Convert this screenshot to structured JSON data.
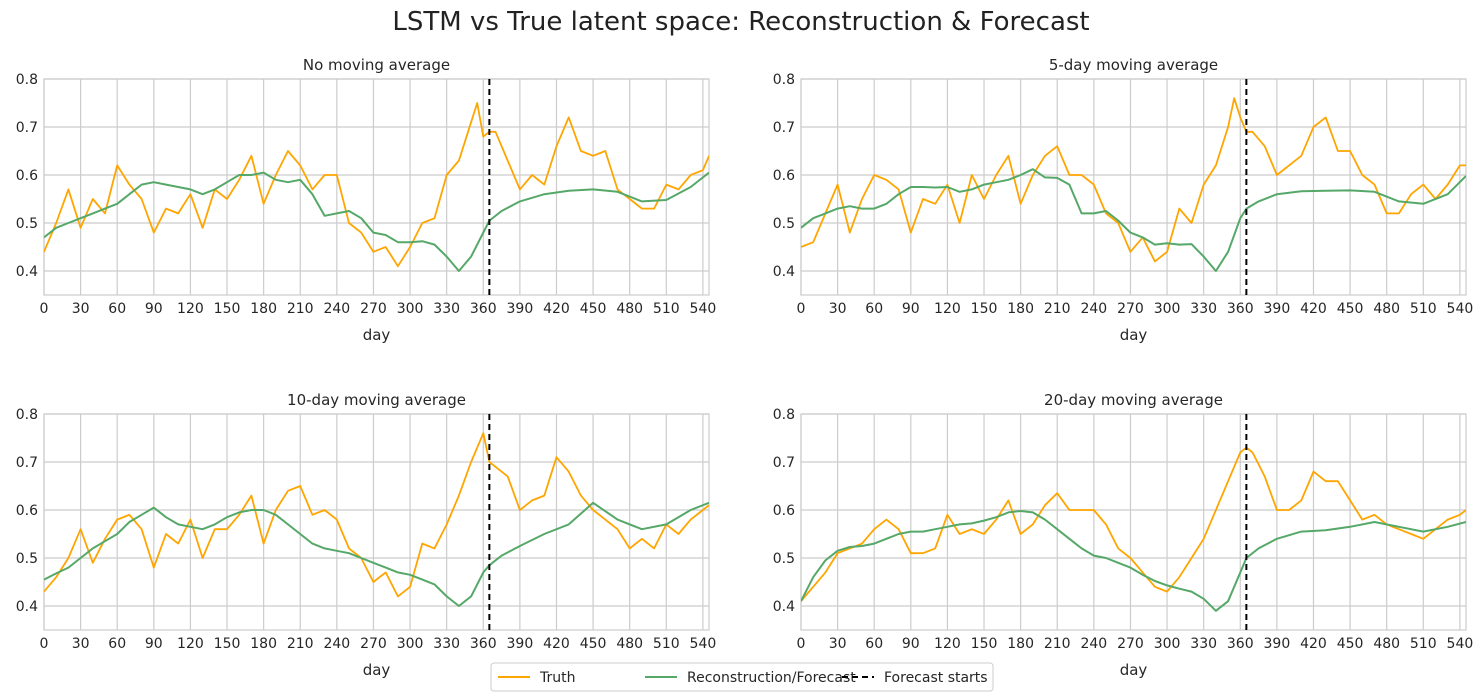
{
  "figure": {
    "title": "LSTM vs True latent space: Reconstruction & Forecast",
    "legend": [
      {
        "label": "Truth",
        "color": "#ffa500",
        "style": "solid"
      },
      {
        "label": "Reconstruction/Forecast",
        "color": "#55a868",
        "style": "solid"
      },
      {
        "label": "Forecast starts",
        "color": "#000000",
        "style": "dashed"
      }
    ],
    "legend_placement": "bottom-center"
  },
  "colors": {
    "truth": "#ffa500",
    "reconstruction": "#55a868",
    "forecast_line": "#000000",
    "grid": "#cccccc",
    "axis": "#cccccc"
  },
  "chart_data": [
    {
      "type": "line",
      "title": "No moving average",
      "xlabel": "day",
      "ylabel": "",
      "xlim": [
        0,
        545
      ],
      "ylim": [
        0.35,
        0.8
      ],
      "xticks": [
        0,
        30,
        60,
        90,
        120,
        150,
        180,
        210,
        240,
        270,
        300,
        330,
        360,
        390,
        420,
        450,
        480,
        510,
        540
      ],
      "yticks": [
        0.4,
        0.5,
        0.6,
        0.7,
        0.8
      ],
      "grid": true,
      "forecast_start": 365,
      "series": [
        {
          "name": "Truth",
          "x": [
            0,
            10,
            20,
            30,
            40,
            50,
            60,
            70,
            80,
            90,
            100,
            110,
            120,
            130,
            140,
            150,
            160,
            170,
            180,
            190,
            200,
            210,
            220,
            230,
            240,
            250,
            260,
            270,
            280,
            290,
            300,
            310,
            320,
            330,
            340,
            350,
            355,
            360,
            365,
            370,
            380,
            390,
            400,
            410,
            420,
            430,
            440,
            450,
            460,
            470,
            480,
            490,
            500,
            510,
            520,
            530,
            540,
            545
          ],
          "y": [
            0.44,
            0.5,
            0.57,
            0.49,
            0.55,
            0.52,
            0.62,
            0.58,
            0.55,
            0.48,
            0.53,
            0.52,
            0.56,
            0.49,
            0.57,
            0.55,
            0.59,
            0.64,
            0.54,
            0.6,
            0.65,
            0.62,
            0.57,
            0.6,
            0.6,
            0.5,
            0.48,
            0.44,
            0.45,
            0.41,
            0.45,
            0.5,
            0.51,
            0.6,
            0.63,
            0.71,
            0.75,
            0.68,
            0.69,
            0.69,
            0.63,
            0.57,
            0.6,
            0.58,
            0.66,
            0.72,
            0.65,
            0.64,
            0.65,
            0.57,
            0.55,
            0.53,
            0.53,
            0.58,
            0.57,
            0.6,
            0.61,
            0.64
          ]
        },
        {
          "name": "Reconstruction/Forecast",
          "x": [
            0,
            10,
            20,
            30,
            40,
            50,
            60,
            70,
            80,
            90,
            100,
            110,
            120,
            130,
            140,
            150,
            160,
            170,
            180,
            190,
            200,
            210,
            220,
            230,
            240,
            250,
            260,
            270,
            280,
            290,
            300,
            310,
            320,
            330,
            340,
            350,
            360,
            365,
            375,
            390,
            410,
            430,
            450,
            470,
            490,
            510,
            530,
            545
          ],
          "y": [
            0.47,
            0.49,
            0.5,
            0.51,
            0.52,
            0.53,
            0.54,
            0.56,
            0.58,
            0.585,
            0.58,
            0.575,
            0.57,
            0.56,
            0.57,
            0.585,
            0.6,
            0.6,
            0.605,
            0.59,
            0.585,
            0.59,
            0.56,
            0.515,
            0.52,
            0.525,
            0.51,
            0.48,
            0.475,
            0.46,
            0.46,
            0.462,
            0.455,
            0.43,
            0.4,
            0.43,
            0.48,
            0.505,
            0.525,
            0.545,
            0.56,
            0.567,
            0.57,
            0.565,
            0.545,
            0.548,
            0.575,
            0.605
          ]
        }
      ]
    },
    {
      "type": "line",
      "title": "5-day moving average",
      "xlabel": "day",
      "ylabel": "",
      "xlim": [
        0,
        545
      ],
      "ylim": [
        0.35,
        0.8
      ],
      "xticks": [
        0,
        30,
        60,
        90,
        120,
        150,
        180,
        210,
        240,
        270,
        300,
        330,
        360,
        390,
        420,
        450,
        480,
        510,
        540
      ],
      "yticks": [
        0.4,
        0.5,
        0.6,
        0.7,
        0.8
      ],
      "grid": true,
      "forecast_start": 365,
      "series": [
        {
          "name": "Truth",
          "x": [
            0,
            10,
            20,
            30,
            40,
            50,
            60,
            70,
            80,
            90,
            100,
            110,
            120,
            130,
            140,
            150,
            160,
            170,
            180,
            190,
            200,
            210,
            220,
            230,
            240,
            250,
            260,
            270,
            280,
            290,
            300,
            310,
            320,
            330,
            340,
            350,
            355,
            360,
            365,
            370,
            380,
            390,
            400,
            410,
            420,
            430,
            440,
            450,
            460,
            470,
            480,
            490,
            500,
            510,
            520,
            530,
            540,
            545
          ],
          "y": [
            0.45,
            0.46,
            0.52,
            0.58,
            0.48,
            0.55,
            0.6,
            0.59,
            0.57,
            0.48,
            0.55,
            0.54,
            0.58,
            0.5,
            0.6,
            0.55,
            0.6,
            0.64,
            0.54,
            0.6,
            0.64,
            0.66,
            0.6,
            0.6,
            0.58,
            0.52,
            0.5,
            0.44,
            0.47,
            0.42,
            0.44,
            0.53,
            0.5,
            0.58,
            0.62,
            0.7,
            0.76,
            0.72,
            0.69,
            0.69,
            0.66,
            0.6,
            0.62,
            0.64,
            0.7,
            0.72,
            0.65,
            0.65,
            0.6,
            0.58,
            0.52,
            0.52,
            0.56,
            0.58,
            0.55,
            0.58,
            0.62,
            0.62
          ]
        },
        {
          "name": "Reconstruction/Forecast",
          "x": [
            0,
            10,
            20,
            30,
            40,
            50,
            60,
            70,
            80,
            90,
            100,
            110,
            120,
            130,
            140,
            150,
            160,
            170,
            180,
            190,
            200,
            210,
            220,
            230,
            240,
            250,
            260,
            270,
            280,
            290,
            300,
            310,
            320,
            330,
            340,
            350,
            360,
            365,
            375,
            390,
            410,
            430,
            450,
            470,
            490,
            510,
            530,
            545
          ],
          "y": [
            0.49,
            0.51,
            0.52,
            0.53,
            0.535,
            0.53,
            0.53,
            0.54,
            0.56,
            0.575,
            0.575,
            0.574,
            0.575,
            0.565,
            0.57,
            0.58,
            0.585,
            0.59,
            0.6,
            0.612,
            0.595,
            0.594,
            0.58,
            0.52,
            0.52,
            0.525,
            0.505,
            0.48,
            0.47,
            0.455,
            0.458,
            0.455,
            0.456,
            0.43,
            0.4,
            0.44,
            0.51,
            0.53,
            0.545,
            0.56,
            0.566,
            0.567,
            0.568,
            0.565,
            0.545,
            0.54,
            0.56,
            0.598
          ]
        }
      ]
    },
    {
      "type": "line",
      "title": "10-day moving average",
      "xlabel": "day",
      "ylabel": "",
      "xlim": [
        0,
        545
      ],
      "ylim": [
        0.35,
        0.8
      ],
      "xticks": [
        0,
        30,
        60,
        90,
        120,
        150,
        180,
        210,
        240,
        270,
        300,
        330,
        360,
        390,
        420,
        450,
        480,
        510,
        540
      ],
      "yticks": [
        0.4,
        0.5,
        0.6,
        0.7,
        0.8
      ],
      "grid": true,
      "forecast_start": 365,
      "series": [
        {
          "name": "Truth",
          "x": [
            0,
            10,
            20,
            30,
            40,
            50,
            60,
            70,
            80,
            90,
            100,
            110,
            120,
            130,
            140,
            150,
            160,
            170,
            180,
            190,
            200,
            210,
            220,
            230,
            240,
            250,
            260,
            270,
            280,
            290,
            300,
            310,
            320,
            330,
            340,
            350,
            360,
            365,
            370,
            380,
            390,
            400,
            410,
            420,
            430,
            440,
            450,
            460,
            470,
            480,
            490,
            500,
            510,
            520,
            530,
            540,
            545
          ],
          "y": [
            0.43,
            0.46,
            0.5,
            0.56,
            0.49,
            0.54,
            0.58,
            0.59,
            0.56,
            0.48,
            0.55,
            0.53,
            0.58,
            0.5,
            0.56,
            0.56,
            0.59,
            0.63,
            0.53,
            0.6,
            0.64,
            0.65,
            0.59,
            0.6,
            0.58,
            0.52,
            0.5,
            0.45,
            0.47,
            0.42,
            0.44,
            0.53,
            0.52,
            0.57,
            0.63,
            0.7,
            0.76,
            0.7,
            0.69,
            0.67,
            0.6,
            0.62,
            0.63,
            0.71,
            0.68,
            0.63,
            0.6,
            0.58,
            0.56,
            0.52,
            0.54,
            0.52,
            0.57,
            0.55,
            0.58,
            0.6,
            0.61
          ]
        },
        {
          "name": "Reconstruction/Forecast",
          "x": [
            0,
            10,
            20,
            30,
            40,
            50,
            60,
            70,
            80,
            90,
            100,
            110,
            120,
            130,
            140,
            150,
            160,
            170,
            180,
            190,
            200,
            210,
            220,
            230,
            240,
            250,
            260,
            270,
            280,
            290,
            300,
            310,
            320,
            330,
            340,
            350,
            360,
            365,
            375,
            390,
            410,
            430,
            450,
            470,
            490,
            510,
            530,
            545
          ],
          "y": [
            0.455,
            0.468,
            0.48,
            0.5,
            0.52,
            0.535,
            0.55,
            0.575,
            0.59,
            0.605,
            0.585,
            0.57,
            0.565,
            0.56,
            0.57,
            0.585,
            0.595,
            0.6,
            0.6,
            0.59,
            0.57,
            0.55,
            0.53,
            0.52,
            0.515,
            0.51,
            0.5,
            0.49,
            0.48,
            0.47,
            0.465,
            0.455,
            0.445,
            0.42,
            0.4,
            0.42,
            0.47,
            0.485,
            0.505,
            0.525,
            0.55,
            0.57,
            0.615,
            0.58,
            0.56,
            0.57,
            0.6,
            0.615
          ]
        }
      ]
    },
    {
      "type": "line",
      "title": "20-day moving average",
      "xlabel": "day",
      "ylabel": "",
      "xlim": [
        0,
        545
      ],
      "ylim": [
        0.35,
        0.8
      ],
      "xticks": [
        0,
        30,
        60,
        90,
        120,
        150,
        180,
        210,
        240,
        270,
        300,
        330,
        360,
        390,
        420,
        450,
        480,
        510,
        540
      ],
      "yticks": [
        0.4,
        0.5,
        0.6,
        0.7,
        0.8
      ],
      "grid": true,
      "forecast_start": 365,
      "series": [
        {
          "name": "Truth",
          "x": [
            0,
            10,
            20,
            30,
            40,
            50,
            60,
            70,
            80,
            90,
            100,
            110,
            120,
            130,
            140,
            150,
            160,
            170,
            180,
            190,
            200,
            210,
            220,
            230,
            240,
            250,
            260,
            270,
            280,
            290,
            300,
            310,
            320,
            330,
            340,
            350,
            360,
            365,
            370,
            380,
            390,
            400,
            410,
            420,
            430,
            440,
            450,
            460,
            470,
            480,
            490,
            500,
            510,
            520,
            530,
            540,
            545
          ],
          "y": [
            0.41,
            0.44,
            0.47,
            0.51,
            0.52,
            0.53,
            0.56,
            0.58,
            0.56,
            0.51,
            0.51,
            0.52,
            0.59,
            0.55,
            0.56,
            0.55,
            0.58,
            0.62,
            0.55,
            0.57,
            0.61,
            0.635,
            0.6,
            0.6,
            0.6,
            0.57,
            0.52,
            0.5,
            0.47,
            0.44,
            0.43,
            0.46,
            0.5,
            0.54,
            0.6,
            0.66,
            0.72,
            0.73,
            0.72,
            0.67,
            0.6,
            0.6,
            0.62,
            0.68,
            0.66,
            0.66,
            0.62,
            0.58,
            0.59,
            0.57,
            0.56,
            0.55,
            0.54,
            0.56,
            0.58,
            0.59,
            0.6
          ]
        },
        {
          "name": "Reconstruction/Forecast",
          "x": [
            0,
            10,
            20,
            30,
            40,
            50,
            60,
            70,
            80,
            90,
            100,
            110,
            120,
            130,
            140,
            150,
            160,
            170,
            180,
            190,
            200,
            210,
            220,
            230,
            240,
            250,
            260,
            270,
            280,
            290,
            300,
            310,
            320,
            330,
            340,
            350,
            360,
            365,
            375,
            390,
            410,
            430,
            450,
            470,
            490,
            510,
            530,
            545
          ],
          "y": [
            0.41,
            0.46,
            0.495,
            0.515,
            0.523,
            0.525,
            0.53,
            0.54,
            0.55,
            0.555,
            0.555,
            0.56,
            0.565,
            0.57,
            0.572,
            0.578,
            0.585,
            0.595,
            0.598,
            0.595,
            0.58,
            0.56,
            0.54,
            0.52,
            0.505,
            0.5,
            0.49,
            0.48,
            0.465,
            0.452,
            0.443,
            0.436,
            0.43,
            0.415,
            0.39,
            0.41,
            0.47,
            0.5,
            0.52,
            0.54,
            0.555,
            0.558,
            0.565,
            0.575,
            0.565,
            0.555,
            0.565,
            0.575
          ]
        }
      ]
    }
  ]
}
